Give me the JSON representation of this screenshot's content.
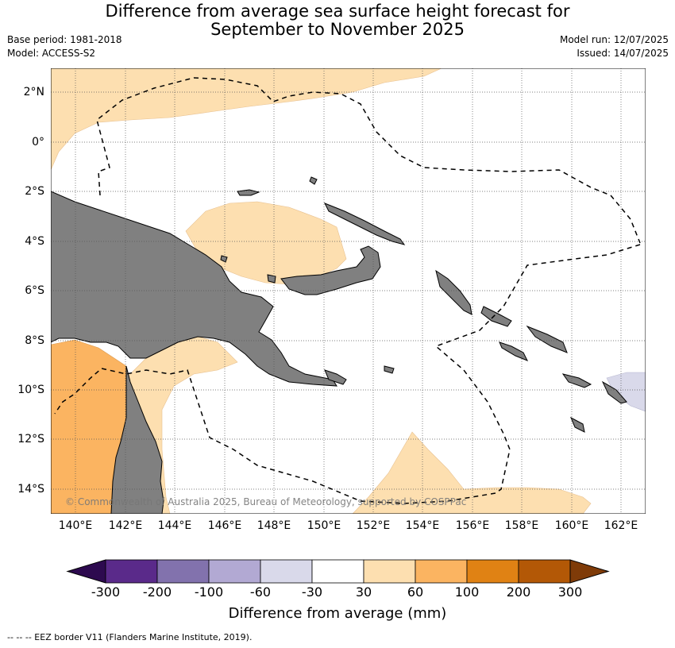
{
  "title": {
    "line1": "Difference from average sea surface height forecast for",
    "line2": "September to November 2025"
  },
  "meta_left": {
    "base_period": "Base period: 1981-2018",
    "model": "Model: ACCESS-S2"
  },
  "meta_right": {
    "model_run": "Model run: 12/07/2025",
    "issued": "Issued: 14/07/2025"
  },
  "lat_labels": [
    "2°N",
    "0°",
    "2°S",
    "4°S",
    "6°S",
    "8°S",
    "10°S",
    "12°S",
    "14°S"
  ],
  "lon_labels": [
    "140°E",
    "142°E",
    "144°E",
    "146°E",
    "148°E",
    "150°E",
    "152°E",
    "154°E",
    "156°E",
    "158°E",
    "160°E",
    "162°E"
  ],
  "copyright": "© Commonwealth of Australia 2025, Bureau of Meteorology, supported by COSPPac",
  "colorbar": {
    "title": "Difference from average (mm)",
    "tick_labels": [
      "-300",
      "-200",
      "-100",
      "-60",
      "-30",
      "30",
      "60",
      "100",
      "200",
      "300"
    ],
    "colors": [
      "#2d0a4f",
      "#5a2a8a",
      "#8272ad",
      "#b2a9d3",
      "#d9d9ea",
      "#ffffff",
      "#fddfb0",
      "#fbb461",
      "#e08214",
      "#b35806",
      "#7f3b08"
    ]
  },
  "footnote": "--  --  -- EEZ border V11 (Flanders Marine Institute, 2019).",
  "map_colors": {
    "land": "#808080",
    "pos_30_60": "#fddfb0",
    "pos_60_100": "#fbb461",
    "neg_30_60": "#d9d9ea"
  }
}
